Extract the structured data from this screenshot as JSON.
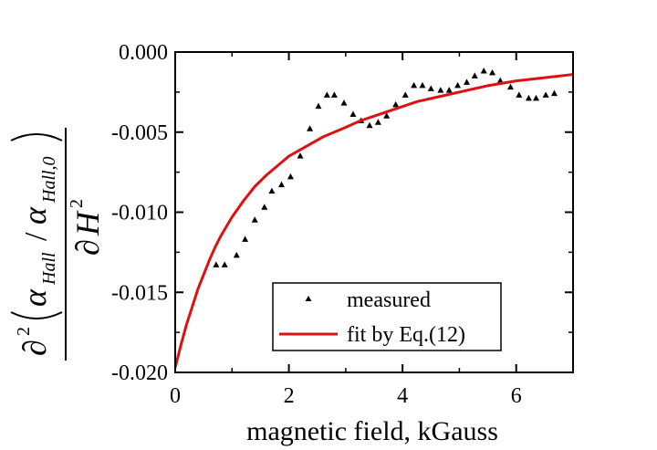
{
  "chart_data": {
    "type": "scatter",
    "title": "",
    "xlabel": "magnetic field, kGauss",
    "ylabel": {
      "partial": "∂",
      "sup": "2",
      "alpha": "α",
      "hall": "Hall",
      "hall0": "Hall,0",
      "slash": "/",
      "H": "H"
    },
    "xlim": [
      0,
      7
    ],
    "ylim": [
      -0.02,
      0.0
    ],
    "xticks": [
      0,
      2,
      4,
      6
    ],
    "xtick_labels": [
      "0",
      "2",
      "4",
      "6"
    ],
    "yticks": [
      0.0,
      -0.005,
      -0.01,
      -0.015,
      -0.02
    ],
    "ytick_labels": [
      "0.000",
      "-0.005",
      "-0.010",
      "-0.015",
      "-0.020"
    ],
    "grid": false,
    "legend_position": "bottom-right",
    "series": [
      {
        "name": "measured",
        "kind": "scatter",
        "marker": "triangle",
        "color": "#000000",
        "x": [
          0.72,
          0.87,
          1.08,
          1.23,
          1.4,
          1.57,
          1.7,
          1.87,
          2.03,
          2.2,
          2.37,
          2.52,
          2.67,
          2.8,
          2.97,
          3.13,
          3.27,
          3.42,
          3.57,
          3.72,
          3.88,
          4.05,
          4.2,
          4.35,
          4.5,
          4.67,
          4.82,
          4.97,
          5.13,
          5.27,
          5.43,
          5.58,
          5.72,
          5.9,
          6.05,
          6.22,
          6.35,
          6.52,
          6.67
        ],
        "y": [
          -0.0133,
          -0.0133,
          -0.0127,
          -0.0117,
          -0.0105,
          -0.0097,
          -0.0087,
          -0.0083,
          -0.0078,
          -0.0065,
          -0.0048,
          -0.0034,
          -0.0027,
          -0.0027,
          -0.0032,
          -0.0039,
          -0.0043,
          -0.0046,
          -0.0044,
          -0.004,
          -0.0033,
          -0.0027,
          -0.0021,
          -0.0021,
          -0.0023,
          -0.0024,
          -0.0024,
          -0.0021,
          -0.0019,
          -0.0015,
          -0.0012,
          -0.0013,
          -0.0018,
          -0.0022,
          -0.0027,
          -0.0029,
          -0.0029,
          -0.0027,
          -0.0026
        ]
      },
      {
        "name": "fit by Eq.(12)",
        "kind": "line",
        "color": "#dd1111",
        "x": [
          0,
          0.1,
          0.2,
          0.3,
          0.4,
          0.5,
          0.6,
          0.7,
          0.8,
          0.9,
          1.0,
          1.2,
          1.4,
          1.6,
          1.8,
          2.0,
          2.2,
          2.4,
          2.6,
          2.8,
          3.0,
          3.25,
          3.5,
          3.75,
          4.0,
          4.25,
          4.5,
          4.75,
          5.0,
          5.5,
          6.0,
          6.5,
          7.0
        ],
        "y": [
          -0.0197,
          -0.0183,
          -0.017,
          -0.0159,
          -0.0148,
          -0.0139,
          -0.013,
          -0.0122,
          -0.0115,
          -0.0109,
          -0.0103,
          -0.0093,
          -0.0084,
          -0.0077,
          -0.0071,
          -0.0065,
          -0.0061,
          -0.0057,
          -0.0053,
          -0.005,
          -0.0047,
          -0.0043,
          -0.004,
          -0.0037,
          -0.0034,
          -0.0031,
          -0.0029,
          -0.0027,
          -0.0025,
          -0.0021,
          -0.0018,
          -0.0016,
          -0.0014
        ]
      }
    ]
  }
}
